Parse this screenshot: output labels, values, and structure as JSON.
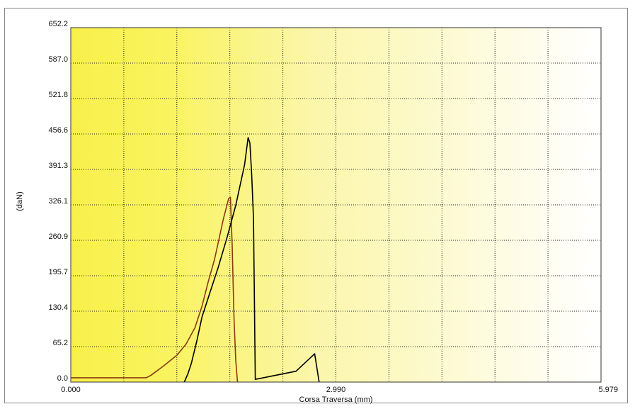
{
  "chart_data": {
    "type": "line",
    "title": "",
    "xlabel": "Corsa Traversa (mm)",
    "ylabel": "(daN)",
    "xlim": [
      0.0,
      5.979
    ],
    "ylim": [
      0.0,
      652.2
    ],
    "x_tick_labels": [
      "0.000",
      "2.990",
      "5.979"
    ],
    "y_tick_labels": [
      "0.0",
      "65.2",
      "130.4",
      "195.7",
      "260.9",
      "326.1",
      "391.3",
      "456.6",
      "521.8",
      "587.0",
      "652.2"
    ],
    "grid": true,
    "background": "yellow-to-white horizontal gradient",
    "series": [
      {
        "color": "#8b3a10",
        "x": [
          0.0,
          0.85,
          0.9,
          1.05,
          1.2,
          1.3,
          1.4,
          1.48,
          1.55,
          1.62,
          1.68,
          1.72,
          1.76,
          1.78,
          1.8,
          1.82,
          1.84,
          1.86,
          1.88
        ],
        "y": [
          8,
          8,
          12,
          30,
          50,
          70,
          100,
          140,
          185,
          225,
          270,
          300,
          325,
          338,
          340,
          250,
          120,
          40,
          0
        ]
      },
      {
        "color": "#000000",
        "x": [
          1.28,
          1.32,
          1.36,
          1.42,
          1.48,
          1.56,
          1.66,
          1.76,
          1.86,
          1.96,
          2.0,
          2.02,
          2.04,
          2.06,
          2.08,
          2.54,
          2.75,
          2.8
        ],
        "y": [
          0,
          15,
          35,
          75,
          120,
          160,
          210,
          265,
          325,
          400,
          450,
          440,
          380,
          300,
          5,
          20,
          52,
          0
        ]
      }
    ]
  }
}
